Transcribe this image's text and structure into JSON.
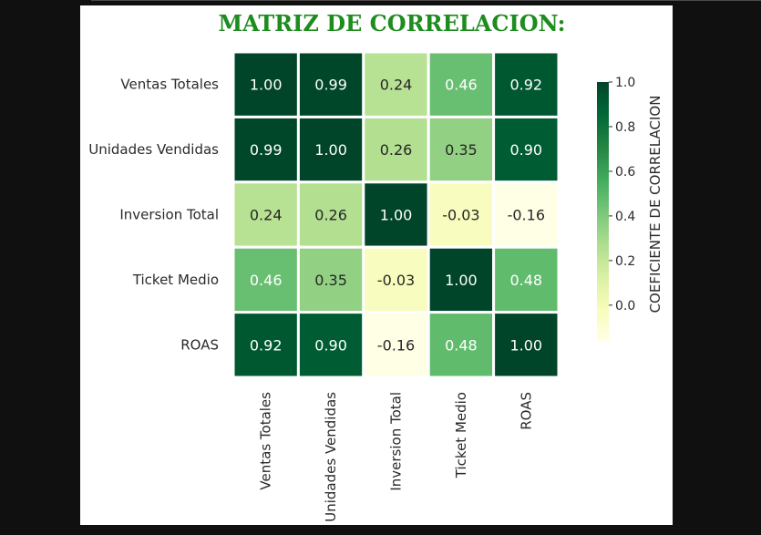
{
  "chart_data": {
    "type": "heatmap",
    "title": "MATRIZ DE CORRELACION:",
    "rows": [
      "Ventas Totales",
      "Unidades Vendidas",
      "Inversion Total",
      "Ticket Medio",
      "ROAS"
    ],
    "cols": [
      "Ventas Totales",
      "Unidades Vendidas",
      "Inversion Total",
      "Ticket Medio",
      "ROAS"
    ],
    "values": [
      [
        1.0,
        0.99,
        0.24,
        0.46,
        0.92
      ],
      [
        0.99,
        1.0,
        0.26,
        0.35,
        0.9
      ],
      [
        0.24,
        0.26,
        1.0,
        -0.03,
        -0.16
      ],
      [
        0.46,
        0.35,
        -0.03,
        1.0,
        0.48
      ],
      [
        0.92,
        0.9,
        -0.16,
        0.48,
        1.0
      ]
    ],
    "value_labels": [
      [
        "1.00",
        "0.99",
        "0.24",
        "0.46",
        "0.92"
      ],
      [
        "0.99",
        "1.00",
        "0.26",
        "0.35",
        "0.90"
      ],
      [
        "0.24",
        "0.26",
        "1.00",
        "-0.03",
        "-0.16"
      ],
      [
        "0.46",
        "0.35",
        "-0.03",
        "1.00",
        "0.48"
      ],
      [
        "0.92",
        "0.90",
        "-0.16",
        "0.48",
        "1.00"
      ]
    ],
    "colormap": "YlGn",
    "vmin": -0.16,
    "vmax": 1.0,
    "colorbar": {
      "label": "COEFICIENTE DE CORRELACION",
      "ticks": [
        1.0,
        0.8,
        0.6,
        0.4,
        0.2,
        0.0
      ],
      "tick_labels": [
        "1.0",
        "0.8",
        "0.6",
        "0.4",
        "0.2",
        "0.0"
      ],
      "placement": "right"
    },
    "colors": {
      "title": "#1e8c1e",
      "cell_border": "#ffffff",
      "background": "#101010"
    }
  }
}
